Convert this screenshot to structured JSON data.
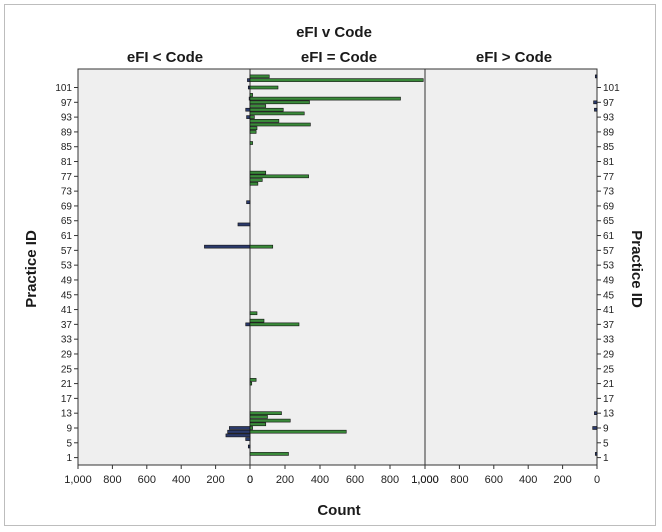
{
  "chart_data": {
    "type": "bar",
    "orientation": "horizontal",
    "title": "eFI v Code",
    "panel_titles": [
      "eFI < Code",
      "eFI = Code",
      "eFI > Code"
    ],
    "xlabel": "Count",
    "ylabel": "Practice ID",
    "panels": [
      {
        "name": "eFI < Code",
        "direction": "left",
        "xlim": [
          0,
          1000
        ],
        "ticks": [
          "1,000",
          "800",
          "600",
          "400",
          "200",
          "0"
        ]
      },
      {
        "name": "eFI = Code",
        "direction": "right",
        "xlim": [
          0,
          1000
        ],
        "ticks": [
          "0",
          "200",
          "400",
          "600",
          "800",
          "1,000"
        ]
      },
      {
        "name": "eFI > Code",
        "direction": "left",
        "xlim": [
          0,
          1000
        ],
        "ticks": [
          "1,000",
          "800",
          "600",
          "400",
          "200",
          "0"
        ]
      }
    ],
    "y_ticks": [
      1,
      5,
      9,
      13,
      17,
      21,
      25,
      29,
      33,
      37,
      41,
      45,
      49,
      53,
      57,
      61,
      65,
      69,
      73,
      77,
      81,
      85,
      89,
      93,
      97,
      101
    ],
    "y_range": [
      -1,
      106
    ],
    "colors": {
      "lt": "#2b3a6b",
      "eq": "#3a8a3a",
      "gt": "#2b3a6b"
    },
    "series": [
      {
        "name": "eFI < Code",
        "points": [
          {
            "id": 103,
            "value": 15
          },
          {
            "id": 101,
            "value": 10
          },
          {
            "id": 98,
            "value": 5
          },
          {
            "id": 95,
            "value": 25
          },
          {
            "id": 93,
            "value": 20
          },
          {
            "id": 70,
            "value": 20
          },
          {
            "id": 64,
            "value": 70
          },
          {
            "id": 58,
            "value": 265
          },
          {
            "id": 37,
            "value": 25
          },
          {
            "id": 9,
            "value": 120
          },
          {
            "id": 8,
            "value": 130
          },
          {
            "id": 7,
            "value": 140
          },
          {
            "id": 6,
            "value": 25
          },
          {
            "id": 4,
            "value": 10
          }
        ]
      },
      {
        "name": "eFI = Code",
        "points": [
          {
            "id": 104,
            "value": 110
          },
          {
            "id": 103,
            "value": 990
          },
          {
            "id": 101,
            "value": 160
          },
          {
            "id": 99,
            "value": 15
          },
          {
            "id": 98,
            "value": 860
          },
          {
            "id": 97,
            "value": 340
          },
          {
            "id": 96,
            "value": 90
          },
          {
            "id": 95,
            "value": 190
          },
          {
            "id": 94,
            "value": 310
          },
          {
            "id": 93,
            "value": 25
          },
          {
            "id": 92,
            "value": 165
          },
          {
            "id": 91,
            "value": 345
          },
          {
            "id": 90,
            "value": 40
          },
          {
            "id": 89,
            "value": 35
          },
          {
            "id": 86,
            "value": 15
          },
          {
            "id": 78,
            "value": 90
          },
          {
            "id": 77,
            "value": 335
          },
          {
            "id": 76,
            "value": 70
          },
          {
            "id": 75,
            "value": 45
          },
          {
            "id": 58,
            "value": 130
          },
          {
            "id": 40,
            "value": 40
          },
          {
            "id": 38,
            "value": 80
          },
          {
            "id": 37,
            "value": 280
          },
          {
            "id": 22,
            "value": 35
          },
          {
            "id": 21,
            "value": 10
          },
          {
            "id": 13,
            "value": 180
          },
          {
            "id": 12,
            "value": 100
          },
          {
            "id": 11,
            "value": 230
          },
          {
            "id": 10,
            "value": 90
          },
          {
            "id": 9,
            "value": 15
          },
          {
            "id": 8,
            "value": 550
          },
          {
            "id": 2,
            "value": 220
          }
        ]
      },
      {
        "name": "eFI > Code",
        "points": [
          {
            "id": 104,
            "value": 10
          },
          {
            "id": 97,
            "value": 20
          },
          {
            "id": 95,
            "value": 15
          },
          {
            "id": 13,
            "value": 15
          },
          {
            "id": 9,
            "value": 25
          },
          {
            "id": 2,
            "value": 10
          }
        ]
      }
    ]
  }
}
